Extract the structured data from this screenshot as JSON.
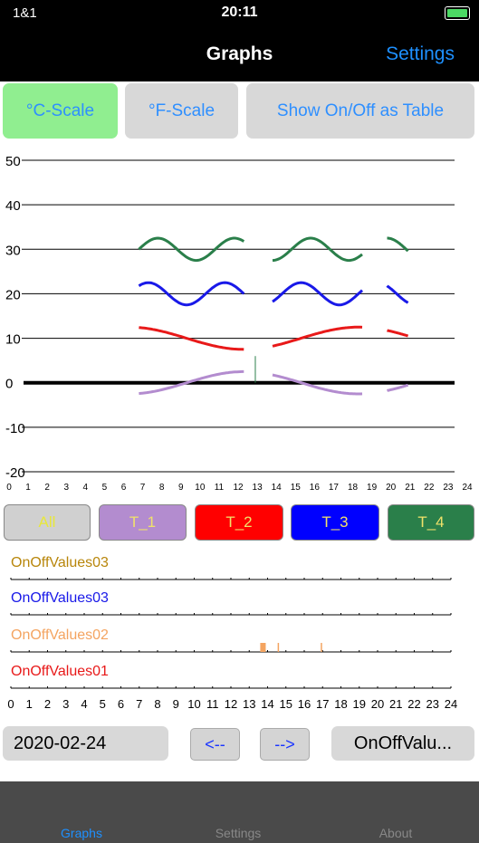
{
  "status": {
    "carrier": "1&1",
    "time": "20:11"
  },
  "nav": {
    "title": "Graphs",
    "settings_label": "Settings"
  },
  "scale_buttons": {
    "celsius": "°C-Scale",
    "fahrenheit": "°F-Scale",
    "table": "Show On/Off as Table"
  },
  "colors": {
    "celsius_active": "#90ee90",
    "link": "#1e90ff",
    "t1": "#b38ccf",
    "t2": "#e81919",
    "t3": "#1919e8",
    "t4": "#2a7f4a"
  },
  "chart_data": {
    "type": "line",
    "x": [
      0,
      24
    ],
    "xlim": [
      0,
      24
    ],
    "ylim": [
      -20,
      50
    ],
    "y_ticks": [
      "50",
      "40",
      "30",
      "20",
      "10",
      "0",
      "-10",
      "-20"
    ],
    "x_ticks": [
      "0",
      "1",
      "2",
      "3",
      "4",
      "5",
      "6",
      "7",
      "8",
      "9",
      "10",
      "11",
      "12",
      "13",
      "14",
      "15",
      "16",
      "17",
      "18",
      "19",
      "20",
      "21",
      "22",
      "23",
      "24"
    ],
    "series": [
      {
        "key": "T_1",
        "segments": [
          [
            6.8,
            12.3
          ],
          [
            13.8,
            18.5
          ],
          [
            19.8,
            20.9
          ]
        ],
        "base": 0.0,
        "amp": 2.5,
        "period": 12,
        "phase": 9.3
      },
      {
        "key": "T_2",
        "segments": [
          [
            6.8,
            12.3
          ],
          [
            13.8,
            18.5
          ],
          [
            19.8,
            20.9
          ]
        ],
        "base": 10.0,
        "amp": 2.5,
        "period": 12,
        "phase": 3.3
      },
      {
        "key": "T_3",
        "segments": [
          [
            6.8,
            12.3
          ],
          [
            13.8,
            18.5
          ],
          [
            19.8,
            20.9
          ]
        ],
        "base": 20.0,
        "amp": 2.5,
        "period": 4,
        "phase": 6.3
      },
      {
        "key": "T_4",
        "segments": [
          [
            6.8,
            12.3
          ],
          [
            13.8,
            18.5
          ],
          [
            19.8,
            20.9
          ]
        ],
        "base": 30.0,
        "amp": 2.5,
        "period": 4,
        "phase": 6.8
      }
    ]
  },
  "series_buttons": [
    {
      "label": "All"
    },
    {
      "label": "T_1"
    },
    {
      "label": "T_2"
    },
    {
      "label": "T_3"
    },
    {
      "label": "T_4"
    }
  ],
  "onoff": {
    "rows": [
      {
        "label": "OnOffValues03",
        "color": "#b8860b"
      },
      {
        "label": "OnOffValues03",
        "color": "#1919e8"
      },
      {
        "label": "OnOffValues02",
        "color": "#f4a460"
      },
      {
        "label": "OnOffValues01",
        "color": "#e81919"
      }
    ],
    "events": [
      {
        "row": 2,
        "start": 13.6,
        "end": 13.9
      },
      {
        "row": 2,
        "start": 14.55,
        "end": 14.6
      },
      {
        "row": 2,
        "start": 16.9,
        "end": 16.95
      }
    ],
    "x_ticks": [
      "0",
      "1",
      "2",
      "3",
      "4",
      "5",
      "6",
      "7",
      "8",
      "9",
      "10",
      "11",
      "12",
      "13",
      "14",
      "15",
      "16",
      "17",
      "18",
      "19",
      "20",
      "21",
      "22",
      "23",
      "24"
    ]
  },
  "bottom": {
    "date": "2020-02-24",
    "prev": "<--",
    "next": "-->",
    "selector": "OnOffValu..."
  },
  "tabs": [
    "Graphs",
    "Settings",
    "About"
  ]
}
